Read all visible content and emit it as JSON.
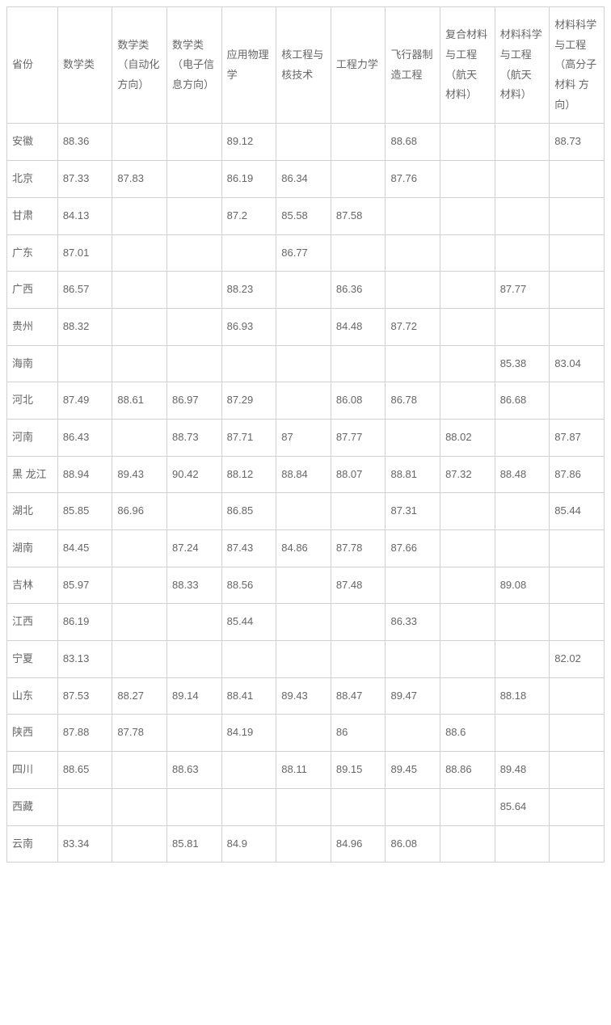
{
  "table": {
    "columns": [
      "省份",
      "数学类",
      "数学类（自动化 方向）",
      "数学类（电子信息方向）",
      "应用物理学",
      "核工程与核技术",
      "工程力学",
      "飞行器制造工程",
      "复合材料与工程（航天 材料）",
      "材料科学与工程（航天 材料）",
      "材料科学与工程（高分子材料 方向）"
    ],
    "rows": [
      {
        "province": "安徽",
        "c1": "88.36",
        "c2": "",
        "c3": "",
        "c4": "89.12",
        "c5": "",
        "c6": "",
        "c7": "88.68",
        "c8": "",
        "c9": "",
        "c10": "88.73"
      },
      {
        "province": "北京",
        "c1": "87.33",
        "c2": "87.83",
        "c3": "",
        "c4": "86.19",
        "c5": "86.34",
        "c6": "",
        "c7": "87.76",
        "c8": "",
        "c9": "",
        "c10": ""
      },
      {
        "province": "甘肃",
        "c1": "84.13",
        "c2": "",
        "c3": "",
        "c4": "87.2",
        "c5": "85.58",
        "c6": "87.58",
        "c7": "",
        "c8": "",
        "c9": "",
        "c10": ""
      },
      {
        "province": "广东",
        "c1": "87.01",
        "c2": "",
        "c3": "",
        "c4": "",
        "c5": "86.77",
        "c6": "",
        "c7": "",
        "c8": "",
        "c9": "",
        "c10": ""
      },
      {
        "province": "广西",
        "c1": "86.57",
        "c2": "",
        "c3": "",
        "c4": "88.23",
        "c5": "",
        "c6": "86.36",
        "c7": "",
        "c8": "",
        "c9": "87.77",
        "c10": ""
      },
      {
        "province": "贵州",
        "c1": "88.32",
        "c2": "",
        "c3": "",
        "c4": "86.93",
        "c5": "",
        "c6": "84.48",
        "c7": "87.72",
        "c8": "",
        "c9": "",
        "c10": ""
      },
      {
        "province": "海南",
        "c1": "",
        "c2": "",
        "c3": "",
        "c4": "",
        "c5": "",
        "c6": "",
        "c7": "",
        "c8": "",
        "c9": "85.38",
        "c10": "83.04"
      },
      {
        "province": "河北",
        "c1": "87.49",
        "c2": "88.61",
        "c3": "86.97",
        "c4": "87.29",
        "c5": "",
        "c6": "86.08",
        "c7": "86.78",
        "c8": "",
        "c9": "86.68",
        "c10": ""
      },
      {
        "province": "河南",
        "c1": "86.43",
        "c2": "",
        "c3": "88.73",
        "c4": "87.71",
        "c5": "87",
        "c6": "87.77",
        "c7": "",
        "c8": "88.02",
        "c9": "",
        "c10": "87.87"
      },
      {
        "province": "黑 龙江",
        "c1": "88.94",
        "c2": "89.43",
        "c3": "90.42",
        "c4": "88.12",
        "c5": "88.84",
        "c6": "88.07",
        "c7": "88.81",
        "c8": "87.32",
        "c9": "88.48",
        "c10": "87.86"
      },
      {
        "province": "湖北",
        "c1": "85.85",
        "c2": "86.96",
        "c3": "",
        "c4": "86.85",
        "c5": "",
        "c6": "",
        "c7": "87.31",
        "c8": "",
        "c9": "",
        "c10": "85.44"
      },
      {
        "province": "湖南",
        "c1": "84.45",
        "c2": "",
        "c3": "87.24",
        "c4": "87.43",
        "c5": "84.86",
        "c6": "87.78",
        "c7": "87.66",
        "c8": "",
        "c9": "",
        "c10": ""
      },
      {
        "province": "吉林",
        "c1": "85.97",
        "c2": "",
        "c3": "88.33",
        "c4": "88.56",
        "c5": "",
        "c6": "87.48",
        "c7": "",
        "c8": "",
        "c9": "89.08",
        "c10": ""
      },
      {
        "province": "江西",
        "c1": "86.19",
        "c2": "",
        "c3": "",
        "c4": "85.44",
        "c5": "",
        "c6": "",
        "c7": "86.33",
        "c8": "",
        "c9": "",
        "c10": ""
      },
      {
        "province": "宁夏",
        "c1": "83.13",
        "c2": "",
        "c3": "",
        "c4": "",
        "c5": "",
        "c6": "",
        "c7": "",
        "c8": "",
        "c9": "",
        "c10": "82.02"
      },
      {
        "province": "山东",
        "c1": "87.53",
        "c2": "88.27",
        "c3": "89.14",
        "c4": "88.41",
        "c5": "89.43",
        "c6": "88.47",
        "c7": "89.47",
        "c8": "",
        "c9": "88.18",
        "c10": ""
      },
      {
        "province": "陕西",
        "c1": "87.88",
        "c2": "87.78",
        "c3": "",
        "c4": "84.19",
        "c5": "",
        "c6": "86",
        "c7": "",
        "c8": "88.6",
        "c9": "",
        "c10": ""
      },
      {
        "province": "四川",
        "c1": "88.65",
        "c2": "",
        "c3": "88.63",
        "c4": "",
        "c5": "88.11",
        "c6": "89.15",
        "c7": "89.45",
        "c8": "88.86",
        "c9": "89.48",
        "c10": ""
      },
      {
        "province": "西藏",
        "c1": "",
        "c2": "",
        "c3": "",
        "c4": "",
        "c5": "",
        "c6": "",
        "c7": "",
        "c8": "",
        "c9": "85.64",
        "c10": ""
      },
      {
        "province": "云南",
        "c1": "83.34",
        "c2": "",
        "c3": "85.81",
        "c4": "84.9",
        "c5": "",
        "c6": "84.96",
        "c7": "86.08",
        "c8": "",
        "c9": "",
        "c10": ""
      }
    ],
    "styling": {
      "border_color": "#d0d0d0",
      "text_color": "#666666",
      "background_color": "#ffffff",
      "font_size": 13,
      "cell_padding": "10px 6px"
    }
  }
}
